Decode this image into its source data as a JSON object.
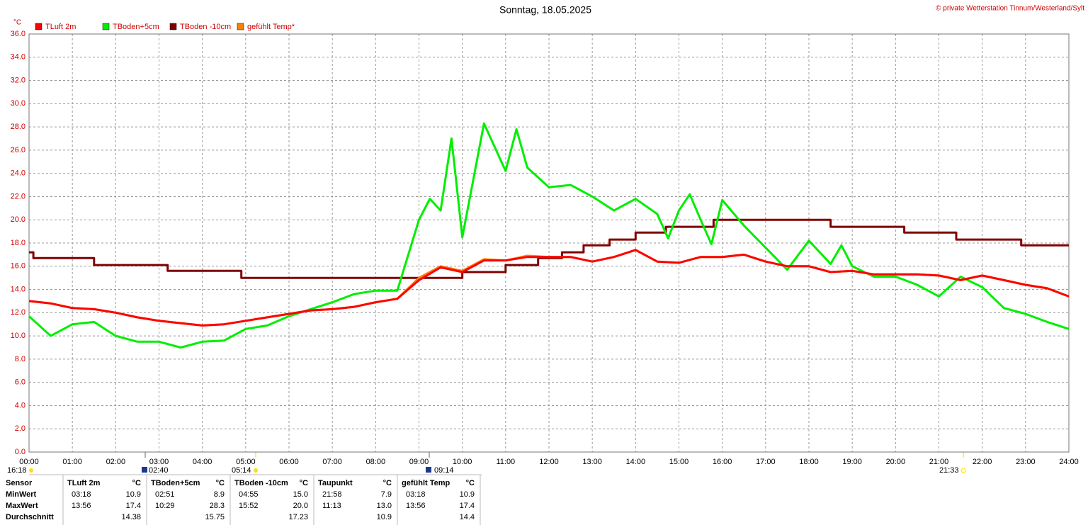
{
  "chart_data": {
    "type": "line",
    "title": "Sonntag, 18.05.2025",
    "subtitle": "© private Wetterstation Tinnum/Westerland/Sylt",
    "y_label": "°C",
    "xlim": [
      0,
      24
    ],
    "ylim": [
      0,
      36
    ],
    "grid": true,
    "legend": "top-left",
    "xticks": [
      {
        "value": 0,
        "label": "00:00"
      },
      {
        "value": 1,
        "label": "01:00"
      },
      {
        "value": 2,
        "label": "02:00"
      },
      {
        "value": 3,
        "label": "03:00"
      },
      {
        "value": 4,
        "label": "04:00"
      },
      {
        "value": 5,
        "label": "05:00"
      },
      {
        "value": 6,
        "label": "06:00"
      },
      {
        "value": 7,
        "label": "07:00"
      },
      {
        "value": 8,
        "label": "08:00"
      },
      {
        "value": 9,
        "label": "09:00"
      },
      {
        "value": 10,
        "label": "10:00"
      },
      {
        "value": 11,
        "label": "11:00"
      },
      {
        "value": 12,
        "label": "12:00"
      },
      {
        "value": 13,
        "label": "13:00"
      },
      {
        "value": 14,
        "label": "14:00"
      },
      {
        "value": 15,
        "label": "15:00"
      },
      {
        "value": 16,
        "label": "16:00"
      },
      {
        "value": 17,
        "label": "17:00"
      },
      {
        "value": 18,
        "label": "18:00"
      },
      {
        "value": 19,
        "label": "19:00"
      },
      {
        "value": 20,
        "label": "20:00"
      },
      {
        "value": 21,
        "label": "21:00"
      },
      {
        "value": 22,
        "label": "22:00"
      },
      {
        "value": 23,
        "label": "23:00"
      },
      {
        "value": 24,
        "label": "24:00"
      }
    ],
    "yticks": [
      {
        "value": 0,
        "label": "0.0"
      },
      {
        "value": 2,
        "label": "2.0"
      },
      {
        "value": 4,
        "label": "4.0"
      },
      {
        "value": 6,
        "label": "6.0"
      },
      {
        "value": 8,
        "label": "8.0"
      },
      {
        "value": 10,
        "label": "10.0"
      },
      {
        "value": 12,
        "label": "12.0"
      },
      {
        "value": 14,
        "label": "14.0"
      },
      {
        "value": 16,
        "label": "16.0"
      },
      {
        "value": 18,
        "label": "18.0"
      },
      {
        "value": 20,
        "label": "20.0"
      },
      {
        "value": 22,
        "label": "22.0"
      },
      {
        "value": 24,
        "label": "24.0"
      },
      {
        "value": 26,
        "label": "26.0"
      },
      {
        "value": 28,
        "label": "28.0"
      },
      {
        "value": 30,
        "label": "30.0"
      },
      {
        "value": 32,
        "label": "32.0"
      },
      {
        "value": 34,
        "label": "34.0"
      },
      {
        "value": 36,
        "label": "36.0"
      }
    ],
    "series": [
      {
        "name": "TLuft 2m",
        "color": "#ff0000",
        "x": [
          0,
          0.5,
          1,
          1.5,
          2,
          2.5,
          3,
          3.5,
          4,
          4.5,
          5,
          5.5,
          6,
          6.5,
          7,
          7.5,
          8,
          8.5,
          9,
          9.5,
          10,
          10.5,
          11,
          11.5,
          12,
          12.5,
          13,
          13.5,
          14,
          14.5,
          15,
          15.5,
          16,
          16.5,
          17,
          17.5,
          18,
          18.5,
          19,
          19.5,
          20,
          20.5,
          21,
          21.5,
          22,
          22.5,
          23,
          23.5,
          24
        ],
        "values": [
          13.0,
          12.8,
          12.4,
          12.3,
          12.0,
          11.6,
          11.3,
          11.1,
          10.9,
          11.0,
          11.3,
          11.6,
          11.9,
          12.2,
          12.3,
          12.5,
          12.9,
          13.2,
          14.8,
          15.9,
          15.5,
          16.5,
          16.5,
          16.8,
          16.8,
          16.8,
          16.4,
          16.8,
          17.4,
          16.4,
          16.3,
          16.8,
          16.8,
          17.0,
          16.4,
          16.0,
          16.0,
          15.5,
          15.6,
          15.3,
          15.3,
          15.3,
          15.2,
          14.8,
          15.2,
          14.8,
          14.4,
          14.1,
          13.4
        ]
      },
      {
        "name": "TBoden+5cm",
        "color": "#00ee00",
        "x": [
          0,
          0.5,
          1,
          1.5,
          2,
          2.5,
          3,
          3.5,
          4,
          4.5,
          5,
          5.5,
          6,
          6.5,
          7,
          7.5,
          8,
          8.5,
          9,
          9.25,
          9.5,
          9.75,
          10,
          10.5,
          11,
          11.25,
          11.5,
          12,
          12.5,
          13,
          13.5,
          14,
          14.5,
          14.75,
          15,
          15.25,
          15.5,
          15.75,
          16,
          16.5,
          17,
          17.5,
          18,
          18.5,
          18.75,
          19,
          19.5,
          20,
          20.5,
          21,
          21.5,
          22,
          22.5,
          23,
          23.5,
          24
        ],
        "values": [
          11.7,
          10.0,
          11.0,
          11.2,
          10.0,
          9.5,
          9.5,
          9.0,
          9.5,
          9.6,
          10.6,
          10.9,
          11.7,
          12.3,
          12.9,
          13.6,
          13.9,
          13.9,
          20.0,
          21.8,
          20.8,
          27.0,
          18.5,
          28.3,
          24.2,
          27.8,
          24.5,
          22.8,
          23.0,
          22.0,
          20.8,
          21.8,
          20.5,
          18.4,
          20.8,
          22.2,
          20.0,
          17.9,
          21.7,
          19.5,
          17.6,
          15.7,
          18.2,
          16.2,
          17.8,
          16.0,
          15.1,
          15.1,
          14.4,
          13.4,
          15.1,
          14.2,
          12.4,
          11.9,
          11.2,
          10.6
        ]
      },
      {
        "name": "TBoden -10cm",
        "color": "#800000",
        "x": [
          0,
          0.1,
          0.1,
          1.5,
          1.5,
          3.2,
          3.2,
          4.9,
          4.9,
          10.0,
          10.0,
          11.0,
          11.0,
          11.75,
          11.75,
          12.3,
          12.3,
          12.8,
          12.8,
          13.4,
          13.4,
          14.0,
          14.0,
          14.7,
          14.7,
          15.8,
          15.8,
          18.5,
          18.5,
          20.2,
          20.2,
          21.4,
          21.4,
          22.9,
          22.9,
          24
        ],
        "values": [
          17.2,
          17.2,
          16.7,
          16.7,
          16.1,
          16.1,
          15.6,
          15.6,
          15.0,
          15.0,
          15.5,
          15.5,
          16.1,
          16.1,
          16.7,
          16.7,
          17.2,
          17.2,
          17.8,
          17.8,
          18.3,
          18.3,
          18.9,
          18.9,
          19.4,
          19.4,
          20.0,
          20.0,
          19.4,
          19.4,
          18.9,
          18.9,
          18.3,
          18.3,
          17.8,
          17.8
        ]
      },
      {
        "name": "gefühlt Temp*",
        "color": "#ff8000",
        "x": [
          0,
          0.5,
          1,
          1.5,
          2,
          2.5,
          3,
          3.5,
          4,
          4.5,
          5,
          5.5,
          6,
          6.5,
          7,
          7.5,
          8,
          8.5,
          9,
          9.5,
          10,
          10.5,
          11,
          11.5,
          12,
          12.5,
          13,
          13.5,
          14,
          14.5,
          15,
          15.5,
          16,
          16.5,
          17,
          17.5,
          18,
          18.5,
          19,
          19.5,
          20,
          20.5,
          21,
          21.5,
          22,
          22.5,
          23,
          23.5,
          24
        ],
        "values": [
          13.0,
          12.8,
          12.4,
          12.3,
          12.0,
          11.6,
          11.3,
          11.1,
          10.9,
          11.0,
          11.3,
          11.6,
          11.9,
          12.2,
          12.3,
          12.5,
          12.9,
          13.2,
          15.0,
          16.0,
          15.6,
          16.6,
          16.5,
          16.9,
          16.8,
          16.8,
          16.4,
          16.8,
          17.4,
          16.4,
          16.3,
          16.8,
          16.8,
          17.0,
          16.4,
          16.0,
          16.0,
          15.5,
          15.6,
          15.3,
          15.3,
          15.3,
          15.2,
          14.8,
          15.2,
          14.8,
          14.4,
          14.1,
          13.4
        ]
      }
    ],
    "annotations": [
      "16:18",
      "02:40",
      "05:14",
      "09:14",
      "21:33"
    ]
  },
  "table": {
    "header": [
      "Sensor",
      "MinWert",
      "MaxWert",
      "Durchschnitt"
    ],
    "columns": [
      {
        "name": "TLuft 2m",
        "unit": "°C",
        "min_time": "03:18",
        "min": "10.9",
        "max_time": "13:56",
        "max": "17.4",
        "avg": "14.38"
      },
      {
        "name": "TBoden+5cm",
        "unit": "°C",
        "min_time": "02:51",
        "min": "8.9",
        "max_time": "10:29",
        "max": "28.3",
        "avg": "15.75"
      },
      {
        "name": "TBoden -10cm",
        "unit": "°C",
        "min_time": "04:55",
        "min": "15.0",
        "max_time": "15:52",
        "max": "20.0",
        "avg": "17.23"
      },
      {
        "name": "Taupunkt",
        "unit": "°C",
        "min_time": "21:58",
        "min": "7.9",
        "max_time": "11:13",
        "max": "13.0",
        "avg": "10.9"
      },
      {
        "name": "gefühlt Temp",
        "unit": "°C",
        "min_time": "03:18",
        "min": "10.9",
        "max_time": "13:56",
        "max": "17.4",
        "avg": "14.4"
      }
    ]
  }
}
